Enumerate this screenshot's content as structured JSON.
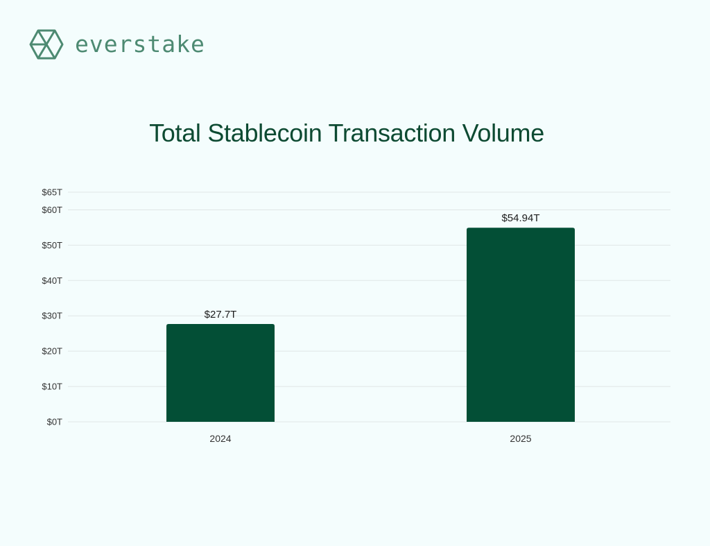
{
  "brand": {
    "name": "everstake",
    "color": "#4d8a72",
    "logo_icon": "hexagon-cube-logo-icon"
  },
  "colors": {
    "background": "#f4fdfd",
    "title": "#0d4a32",
    "bar": "#034f36",
    "grid": "#dfe6e6",
    "tick_text": "#333333",
    "data_label": "#1c1c1c"
  },
  "chart_data": {
    "type": "bar",
    "title": "Total Stablecoin Transaction Volume",
    "xlabel": "",
    "ylabel": "",
    "categories": [
      "2024",
      "2025"
    ],
    "values": [
      27.7,
      54.94
    ],
    "data_labels": [
      "$27.7T",
      "$54.94T"
    ],
    "ylim": [
      0,
      65
    ],
    "yticks": [
      0,
      10,
      20,
      30,
      40,
      50,
      60,
      65
    ],
    "ytick_labels": [
      "$0T",
      "$10T",
      "$20T",
      "$30T",
      "$40T",
      "$50T",
      "$60T",
      "$65T"
    ],
    "grid": true,
    "legend": "none"
  }
}
